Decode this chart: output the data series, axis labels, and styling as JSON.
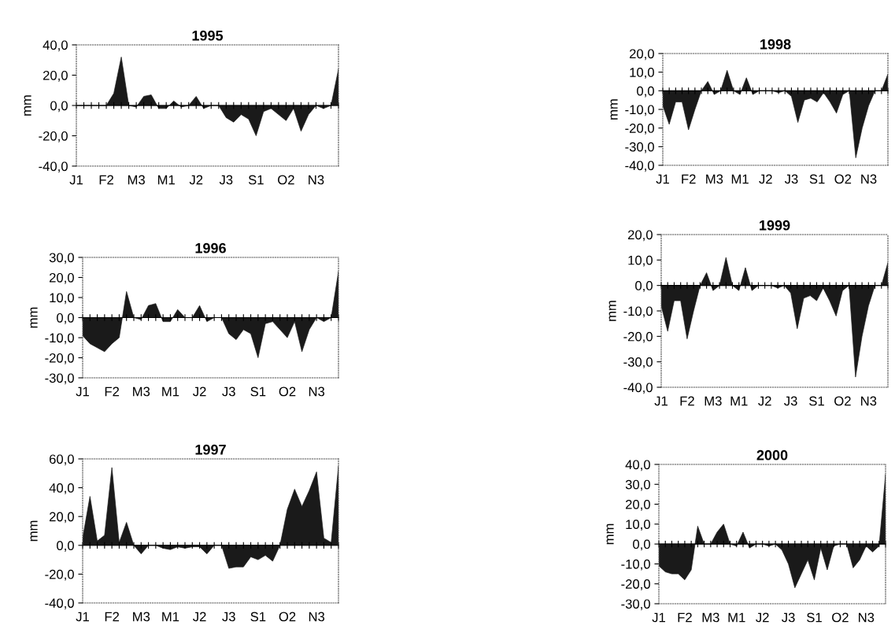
{
  "chart_data": [
    {
      "type": "area",
      "title": "1995",
      "ylabel": "mm",
      "categories": [
        "J1",
        null,
        null,
        null,
        "F2",
        null,
        null,
        null,
        "M3",
        null,
        null,
        null,
        "M1",
        null,
        null,
        null,
        "J2",
        null,
        null,
        null,
        "J3",
        null,
        null,
        null,
        "S1",
        null,
        null,
        null,
        "O2",
        null,
        null,
        null,
        "N3",
        null,
        null,
        null
      ],
      "color": "#1a1a1a",
      "ylim": [
        -40,
        40
      ],
      "yticks": [
        {
          "value": -40,
          "label": "-40,0"
        },
        {
          "value": -20,
          "label": "-20,0"
        },
        {
          "value": 0,
          "label": "0,0"
        },
        {
          "value": 20,
          "label": "20,0"
        },
        {
          "value": 40,
          "label": "40,0"
        }
      ],
      "values": [
        0,
        0,
        0,
        0,
        0,
        8,
        32,
        0,
        -1,
        6,
        7,
        -2,
        -2,
        3,
        -1,
        0,
        6,
        -2,
        0,
        0,
        -8,
        -11,
        -6,
        -9,
        -20,
        -4,
        -2,
        -6,
        -10,
        -2,
        -17,
        -6,
        0,
        -2,
        0,
        24
      ]
    },
    {
      "type": "area",
      "title": "1996",
      "ylabel": "mm",
      "categories": [
        "J1",
        null,
        null,
        null,
        "F2",
        null,
        null,
        null,
        "M3",
        null,
        null,
        null,
        "M1",
        null,
        null,
        null,
        "J2",
        null,
        null,
        null,
        "J3",
        null,
        null,
        null,
        "S1",
        null,
        null,
        null,
        "O2",
        null,
        null,
        null,
        "N3",
        null,
        null,
        null
      ],
      "color": "#1a1a1a",
      "ylim": [
        -30,
        30
      ],
      "yticks": [
        {
          "value": -30,
          "label": "-30,0"
        },
        {
          "value": -20,
          "label": "-20,0"
        },
        {
          "value": -10,
          "label": "-10,0"
        },
        {
          "value": 0,
          "label": "0,0"
        },
        {
          "value": 10,
          "label": "10,0"
        },
        {
          "value": 20,
          "label": "20,0"
        },
        {
          "value": 30,
          "label": "30,0"
        }
      ],
      "values": [
        -9,
        -13,
        -15,
        -17,
        -13,
        -10,
        13,
        0,
        -1,
        6,
        7,
        -2,
        -2,
        4,
        0,
        0,
        6,
        -2,
        0,
        0,
        -8,
        -11,
        -6,
        -8,
        -20,
        -3,
        -2,
        -6,
        -10,
        -2,
        -17,
        -6,
        0,
        -2,
        0,
        23
      ]
    },
    {
      "type": "area",
      "title": "1997",
      "ylabel": "mm",
      "categories": [
        "J1",
        null,
        null,
        null,
        "F2",
        null,
        null,
        null,
        "M3",
        null,
        null,
        null,
        "M1",
        null,
        null,
        null,
        "J2",
        null,
        null,
        null,
        "J3",
        null,
        null,
        null,
        "S1",
        null,
        null,
        null,
        "O2",
        null,
        null,
        null,
        "N3",
        null,
        null,
        null
      ],
      "color": "#1a1a1a",
      "ylim": [
        -40,
        60
      ],
      "yticks": [
        {
          "value": -40,
          "label": "-40,0"
        },
        {
          "value": -20,
          "label": "-20,0"
        },
        {
          "value": 0,
          "label": "0,0"
        },
        {
          "value": 20,
          "label": "20,0"
        },
        {
          "value": 40,
          "label": "40,0"
        },
        {
          "value": 60,
          "label": "60,0"
        }
      ],
      "values": [
        5,
        34,
        3,
        7,
        54,
        2,
        16,
        0,
        -6,
        0,
        0,
        -2,
        -3,
        -1,
        -2,
        -1,
        -1,
        -6,
        0,
        0,
        -16,
        -15,
        -15,
        -8,
        -10,
        -7,
        -11,
        0,
        25,
        39,
        27,
        38,
        51,
        5,
        2,
        55
      ]
    },
    {
      "type": "area",
      "title": "1998",
      "ylabel": "mm",
      "categories": [
        "J1",
        null,
        null,
        null,
        "F2",
        null,
        null,
        null,
        "M3",
        null,
        null,
        null,
        "M1",
        null,
        null,
        null,
        "J2",
        null,
        null,
        null,
        "J3",
        null,
        null,
        null,
        "S1",
        null,
        null,
        null,
        "O2",
        null,
        null,
        null,
        "N3",
        null,
        null,
        null
      ],
      "color": "#1a1a1a",
      "ylim": [
        -40,
        20
      ],
      "yticks": [
        {
          "value": -40,
          "label": "-40,0"
        },
        {
          "value": -30,
          "label": "-30,0"
        },
        {
          "value": -20,
          "label": "-20,0"
        },
        {
          "value": -10,
          "label": "-10,0"
        },
        {
          "value": 0,
          "label": "0,0"
        },
        {
          "value": 10,
          "label": "10,0"
        },
        {
          "value": 20,
          "label": "20,0"
        }
      ],
      "values": [
        -8,
        -18,
        -6,
        -6,
        -21,
        -10,
        0,
        5,
        -2,
        0,
        11,
        0,
        -2,
        7,
        -2,
        0,
        0,
        0,
        -1,
        0,
        -3,
        -17,
        -5,
        -4,
        -6,
        -1,
        -6,
        -12,
        -2,
        0,
        -36,
        -20,
        -8,
        0,
        0,
        9
      ]
    },
    {
      "type": "area",
      "title": "1999",
      "ylabel": "mm",
      "categories": [
        "J1",
        null,
        null,
        null,
        "F2",
        null,
        null,
        null,
        "M3",
        null,
        null,
        null,
        "M1",
        null,
        null,
        null,
        "J2",
        null,
        null,
        null,
        "J3",
        null,
        null,
        null,
        "S1",
        null,
        null,
        null,
        "O2",
        null,
        null,
        null,
        "N3",
        null,
        null,
        null
      ],
      "color": "#1a1a1a",
      "ylim": [
        -40,
        20
      ],
      "yticks": [
        {
          "value": -40,
          "label": "-40,0"
        },
        {
          "value": -30,
          "label": "-30,0"
        },
        {
          "value": -20,
          "label": "-20,0"
        },
        {
          "value": -10,
          "label": "-10,0"
        },
        {
          "value": 0,
          "label": "0,0"
        },
        {
          "value": 10,
          "label": "10,0"
        },
        {
          "value": 20,
          "label": "20,0"
        }
      ],
      "values": [
        -8,
        -18,
        -6,
        -6,
        -21,
        -10,
        0,
        5,
        -2,
        0,
        11,
        0,
        -2,
        7,
        -2,
        0,
        0,
        0,
        -1,
        0,
        -3,
        -17,
        -5,
        -4,
        -6,
        -1,
        -6,
        -12,
        -2,
        0,
        -36,
        -20,
        -8,
        0,
        0,
        9
      ]
    },
    {
      "type": "area",
      "title": "2000",
      "ylabel": "mm",
      "categories": [
        "J1",
        null,
        null,
        null,
        "F2",
        null,
        null,
        null,
        "M3",
        null,
        null,
        null,
        "M1",
        null,
        null,
        null,
        "J2",
        null,
        null,
        null,
        "J3",
        null,
        null,
        null,
        "S1",
        null,
        null,
        null,
        "O2",
        null,
        null,
        null,
        "N3",
        null,
        null,
        null
      ],
      "color": "#1a1a1a",
      "ylim": [
        -30,
        40
      ],
      "yticks": [
        {
          "value": -30,
          "label": "-30,0"
        },
        {
          "value": -20,
          "label": "-20,0"
        },
        {
          "value": -10,
          "label": "-10,0"
        },
        {
          "value": 0,
          "label": "0,0"
        },
        {
          "value": 10,
          "label": "10,0"
        },
        {
          "value": 20,
          "label": "20,0"
        },
        {
          "value": 30,
          "label": "30,0"
        },
        {
          "value": 40,
          "label": "40,0"
        }
      ],
      "values": [
        -11,
        -14,
        -15,
        -15,
        -18,
        -13,
        9,
        0,
        0,
        6,
        10,
        0,
        -1,
        6,
        -2,
        0,
        0,
        -1,
        0,
        -3,
        -10,
        -22,
        -15,
        -8,
        -18,
        -2,
        -13,
        -1,
        0,
        0,
        -12,
        -8,
        -1,
        -4,
        -1,
        35
      ]
    }
  ]
}
